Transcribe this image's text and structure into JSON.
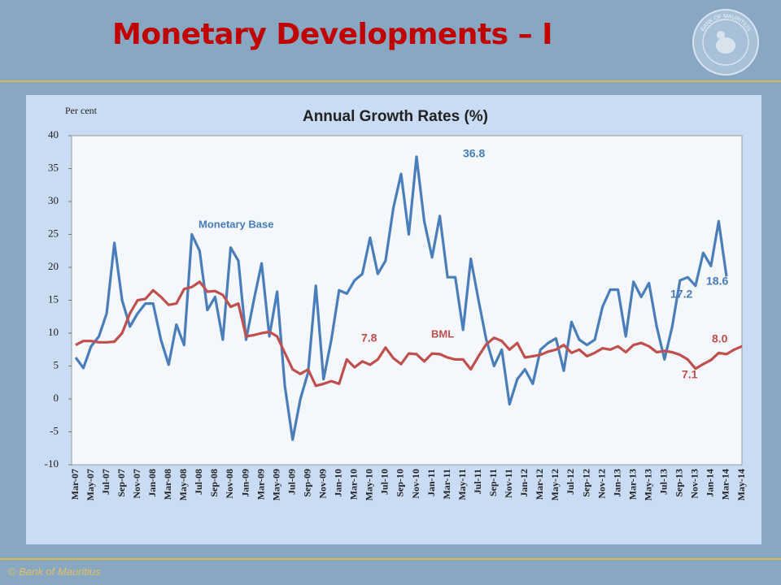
{
  "slide_title": "Monetary Developments – I",
  "footer": "© Bank of Mauritius",
  "logo_text": "BANK OF MAURITIUS",
  "chart_data": {
    "type": "line",
    "title": "Annual Growth Rates (%)",
    "y_label": "Per cent",
    "categories": [
      "Mar-07",
      null,
      "May-07",
      null,
      "Jul-07",
      null,
      "Sep-07",
      null,
      "Nov-07",
      null,
      "Jan-08",
      null,
      "Mar-08",
      null,
      "May-08",
      null,
      "Jul-08",
      null,
      "Sep-08",
      null,
      "Nov-08",
      null,
      "Jan-09",
      null,
      "Mar-09",
      null,
      "May-09",
      null,
      "Jul-09",
      null,
      "Sep-09",
      null,
      "Nov-09",
      null,
      "Jan-10",
      null,
      "Mar-10",
      null,
      "May-10",
      null,
      "Jul-10",
      null,
      "Sep-10",
      null,
      "Nov-10",
      null,
      "Jan-11",
      null,
      "Mar-11",
      null,
      "May-11",
      null,
      "Jul-11",
      null,
      "Sep-11",
      null,
      "Nov-11",
      null,
      "Jan-12",
      null,
      "Mar-12",
      null,
      "May-12",
      null,
      "Jul-12",
      null,
      "Sep-12",
      null,
      "Nov-12",
      null,
      "Jan-13",
      null,
      "Mar-13",
      null,
      "May-13",
      null,
      "Jul-13",
      null,
      "Sep-13",
      null,
      "Nov-13",
      null,
      "Jan-14",
      null,
      "Mar-14",
      null,
      "May-14"
    ],
    "series": [
      {
        "name": "Monetary Base",
        "color": "#4a7ebb",
        "values": [
          6.3,
          4.7,
          8,
          9.5,
          13,
          23.7,
          15,
          11,
          13,
          14.5,
          14.5,
          9,
          5.2,
          11.3,
          8.2,
          25,
          22.5,
          13.5,
          15.5,
          9,
          23,
          21,
          9,
          15,
          20.6,
          9.5,
          16.3,
          2,
          -6.2,
          0,
          4,
          17.2,
          3,
          9,
          16.5,
          16,
          18,
          19,
          24.5,
          19,
          21,
          29,
          34.2,
          25,
          36.8,
          27,
          21.5,
          27.8,
          18.5,
          18.5,
          10.5,
          21.3,
          15,
          9,
          5,
          7.5,
          -0.8,
          3,
          4.5,
          2.3,
          7.5,
          8.5,
          9.2,
          4.3,
          11.7,
          9,
          8.2,
          9,
          14,
          16.6,
          16.6,
          9.5,
          17.8,
          15.5,
          17.6,
          11,
          6,
          11,
          18,
          18.5,
          17.2,
          22.2,
          20.2,
          27,
          18.6,
          null,
          null
        ]
      },
      {
        "name": "BML",
        "color": "#c0504d",
        "values": [
          8.2,
          8.8,
          8.8,
          8.6,
          8.6,
          8.7,
          10,
          13,
          15,
          15.2,
          16.5,
          15.5,
          14.3,
          14.5,
          16.7,
          17,
          17.8,
          16.3,
          16.4,
          15.8,
          14,
          14.5,
          9.5,
          9.7,
          10,
          10.2,
          9.5,
          7,
          4.5,
          3.8,
          4.5,
          2,
          2.3,
          2.7,
          2.3,
          6,
          4.8,
          5.7,
          5.2,
          6,
          7.8,
          6.2,
          5.3,
          6.9,
          6.8,
          5.7,
          6.9,
          6.8,
          6.3,
          6,
          6,
          4.5,
          6.5,
          8.3,
          9.3,
          8.8,
          7.5,
          8.5,
          6.3,
          6.5,
          6.7,
          7.2,
          7.5,
          8.2,
          7,
          7.5,
          6.5,
          7,
          7.7,
          7.5,
          8,
          7.1,
          8.2,
          8.5,
          8,
          7.1,
          7.3,
          7.1,
          6.7,
          6,
          4.6,
          5.3,
          5.9,
          7,
          6.8,
          7.5,
          8.0
        ]
      }
    ],
    "annotations": [
      {
        "text": "36.8",
        "color": "#4a7ebb"
      },
      {
        "text": "Monetary Base",
        "color": "#4a7ebb"
      },
      {
        "text": "17.2",
        "color": "#4a7ebb"
      },
      {
        "text": "18.6",
        "color": "#4a7ebb"
      },
      {
        "text": "7.8",
        "color": "#c0504d"
      },
      {
        "text": "BML",
        "color": "#c0504d"
      },
      {
        "text": "7.1",
        "color": "#c0504d"
      },
      {
        "text": "8.0",
        "color": "#c0504d"
      }
    ],
    "ylim": [
      -10,
      40
    ],
    "yticks": [
      -10,
      -5,
      0,
      5,
      10,
      15,
      20,
      25,
      30,
      35,
      40
    ],
    "grid": false
  }
}
